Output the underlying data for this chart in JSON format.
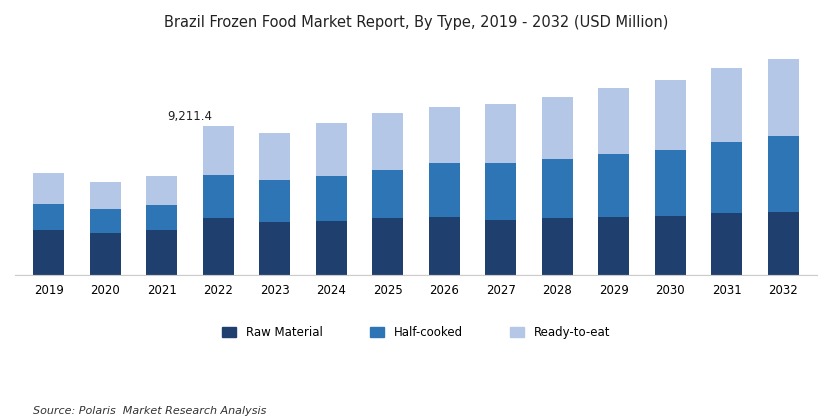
{
  "title": "Brazil Frozen Food Market Report, By Type, 2019 - 2032 (USD Million)",
  "source": "Source: Polaris  Market Research Analysis",
  "years": [
    2019,
    2020,
    2021,
    2022,
    2023,
    2024,
    2025,
    2026,
    2027,
    2028,
    2029,
    2030,
    2031,
    2032
  ],
  "raw_material": [
    2800,
    2600,
    2750,
    3500,
    3300,
    3350,
    3500,
    3600,
    3400,
    3500,
    3600,
    3650,
    3800,
    3900
  ],
  "half_cooked": [
    1600,
    1500,
    1600,
    2700,
    2600,
    2800,
    3000,
    3300,
    3500,
    3700,
    3900,
    4100,
    4400,
    4700
  ],
  "ready_to_eat": [
    1900,
    1650,
    1800,
    3011.4,
    2900,
    3250,
    3500,
    3500,
    3700,
    3800,
    4100,
    4300,
    4600,
    4800
  ],
  "annotation_year": 2022,
  "annotation_text": "9,211.4",
  "color_raw": "#1f3f6e",
  "color_half": "#2e75b6",
  "color_ready": "#b4c7e7",
  "bar_width": 0.55,
  "legend_labels": [
    "Raw Material",
    "Half-cooked",
    "Ready-to-eat"
  ],
  "background_color": "#ffffff",
  "ylim_max": 14500
}
